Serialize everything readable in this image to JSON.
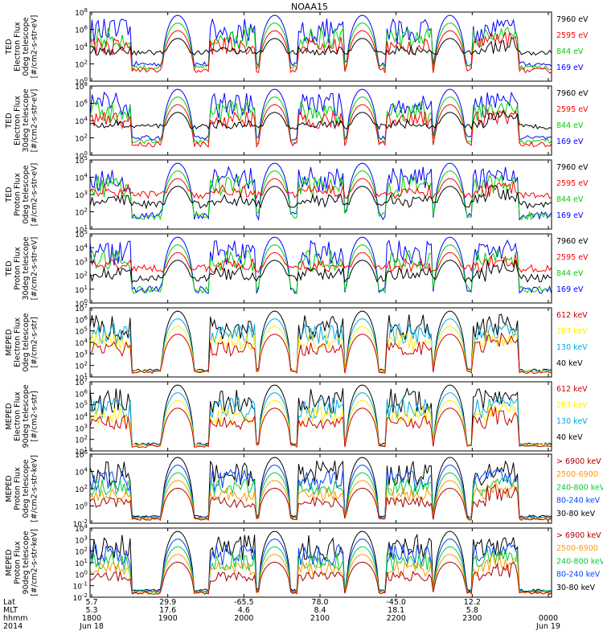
{
  "title": "NOAA15",
  "chart_data": {
    "type": "line",
    "title": "NOAA15",
    "x_axis": {
      "rows": [
        {
          "label": "Lat",
          "values": [
            "5.7",
            "29.9",
            "-65.5",
            "78.0",
            "-45.0",
            "12.2"
          ]
        },
        {
          "label": "MLT",
          "values": [
            "5.3",
            "17.6",
            "4.6",
            "8.4",
            "18.1",
            "5.8"
          ]
        },
        {
          "label": "hhmm",
          "values": [
            "1800",
            "1900",
            "2000",
            "2100",
            "2200",
            "2300",
            "0000"
          ]
        },
        {
          "label": "2014",
          "values": [
            "Jun 18",
            "Jun 19"
          ]
        }
      ],
      "tick_times": [
        "1800",
        "1900",
        "2000",
        "2100",
        "2200",
        "2300",
        "0000"
      ]
    },
    "panels": [
      {
        "ylabel": [
          "TED",
          "Electron Flux",
          "0deg telescope",
          "[#/cm2-s-str-eV]"
        ],
        "ylim": [
          "10^0",
          "10^8"
        ],
        "yticks": [
          {
            "base": "10",
            "exp": "0"
          },
          {
            "base": "10",
            "exp": "2"
          },
          {
            "base": "10",
            "exp": "4"
          },
          {
            "base": "10",
            "exp": "6"
          },
          {
            "base": "10",
            "exp": "8"
          }
        ],
        "series": [
          {
            "name": "7960 eV",
            "color": "#000000"
          },
          {
            "name": "2595 eV",
            "color": "#ff0000"
          },
          {
            "name": "844 eV",
            "color": "#00d000"
          },
          {
            "name": "169 eV",
            "color": "#0000ff"
          }
        ]
      },
      {
        "ylabel": [
          "TED",
          "Electron Flux",
          "30deg telescope",
          "[#/cm2-s-str-eV]"
        ],
        "ylim": [
          "10^0",
          "10^8"
        ],
        "yticks": [
          {
            "base": "10",
            "exp": "0"
          },
          {
            "base": "10",
            "exp": "2"
          },
          {
            "base": "10",
            "exp": "4"
          },
          {
            "base": "10",
            "exp": "6"
          },
          {
            "base": "10",
            "exp": "8"
          }
        ],
        "series": [
          {
            "name": "7960 eV",
            "color": "#000000"
          },
          {
            "name": "2595 eV",
            "color": "#ff0000"
          },
          {
            "name": "844 eV",
            "color": "#00d000"
          },
          {
            "name": "169 eV",
            "color": "#0000ff"
          }
        ]
      },
      {
        "ylabel": [
          "TED",
          "Proton Flux",
          "0deg telescope",
          "[#/cm2-s-str-eV]"
        ],
        "ylim": [
          "10^0",
          "10^5"
        ],
        "yticks": [
          {
            "base": "10",
            "exp": "1"
          },
          {
            "base": "10",
            "exp": "2"
          },
          {
            "base": "10",
            "exp": "3"
          },
          {
            "base": "10",
            "exp": "4"
          },
          {
            "base": "10",
            "exp": "5"
          }
        ],
        "series": [
          {
            "name": "7960 eV",
            "color": "#000000"
          },
          {
            "name": "2595 eV",
            "color": "#ff0000"
          },
          {
            "name": "844 eV",
            "color": "#00d000"
          },
          {
            "name": "169 eV",
            "color": "#0000ff"
          }
        ]
      },
      {
        "ylabel": [
          "TED",
          "Proton Flux",
          "30deg telescope",
          "[#/cm2-s-str-eV]"
        ],
        "ylim": [
          "10^0",
          "10^5"
        ],
        "yticks": [
          {
            "base": "10",
            "exp": "0"
          },
          {
            "base": "10",
            "exp": "1"
          },
          {
            "base": "10",
            "exp": "2"
          },
          {
            "base": "10",
            "exp": "3"
          },
          {
            "base": "10",
            "exp": "4"
          },
          {
            "base": "10",
            "exp": "5"
          }
        ],
        "series": [
          {
            "name": "7960 eV",
            "color": "#000000"
          },
          {
            "name": "2595 eV",
            "color": "#ff0000"
          },
          {
            "name": "844 eV",
            "color": "#00d000"
          },
          {
            "name": "169 eV",
            "color": "#0000ff"
          }
        ]
      },
      {
        "ylabel": [
          "MEPED",
          "Electron Flux",
          "0deg telescope",
          "[#/cm2-s-str]"
        ],
        "ylim": [
          "10^1",
          "10^7"
        ],
        "yticks": [
          {
            "base": "10",
            "exp": "1"
          },
          {
            "base": "10",
            "exp": "2"
          },
          {
            "base": "10",
            "exp": "3"
          },
          {
            "base": "10",
            "exp": "4"
          },
          {
            "base": "10",
            "exp": "5"
          },
          {
            "base": "10",
            "exp": "6"
          },
          {
            "base": "10",
            "exp": "7"
          }
        ],
        "series": [
          {
            "name": "612 keV",
            "color": "#cc0000"
          },
          {
            "name": "287 keV",
            "color": "#ffee00"
          },
          {
            "name": "130 keV",
            "color": "#00aadd"
          },
          {
            "name": "40 keV",
            "color": "#000000"
          }
        ]
      },
      {
        "ylabel": [
          "MEPED",
          "Electron Flux",
          "90deg telescope",
          "[#/cm2-s-str]"
        ],
        "ylim": [
          "10^1",
          "10^7"
        ],
        "yticks": [
          {
            "base": "10",
            "exp": "1"
          },
          {
            "base": "10",
            "exp": "2"
          },
          {
            "base": "10",
            "exp": "3"
          },
          {
            "base": "10",
            "exp": "4"
          },
          {
            "base": "10",
            "exp": "5"
          },
          {
            "base": "10",
            "exp": "6"
          },
          {
            "base": "10",
            "exp": "7"
          }
        ],
        "series": [
          {
            "name": "612 keV",
            "color": "#cc0000"
          },
          {
            "name": "287 keV",
            "color": "#ffee00"
          },
          {
            "name": "130 keV",
            "color": "#00aadd"
          },
          {
            "name": "40 keV",
            "color": "#000000"
          }
        ]
      },
      {
        "ylabel": [
          "MEPED",
          "Proton Flux",
          "0deg telescope",
          "[#/cm2-s-str-keV]"
        ],
        "ylim": [
          "10^-2",
          "10^6"
        ],
        "yticks": [
          {
            "base": "10",
            "exp": "-2"
          },
          {
            "base": "10",
            "exp": "0"
          },
          {
            "base": "10",
            "exp": "2"
          },
          {
            "base": "10",
            "exp": "4"
          },
          {
            "base": "10",
            "exp": "6"
          }
        ],
        "series": [
          {
            "name": "> 6900 keV",
            "color": "#aa0000"
          },
          {
            "name": "2500-6900",
            "color": "#ff9900"
          },
          {
            "name": "240-800 keV",
            "color": "#00cc33"
          },
          {
            "name": "80-240 keV",
            "color": "#0044ff"
          },
          {
            "name": "30-80 keV",
            "color": "#000000"
          }
        ]
      },
      {
        "ylabel": [
          "MEPED",
          "Proton Flux",
          "90deg telescope",
          "[#/cm2-s-str-keV]"
        ],
        "ylim": [
          "10^-2",
          "10^4"
        ],
        "yticks": [
          {
            "base": "10",
            "exp": "-2"
          },
          {
            "base": "10",
            "exp": "-1"
          },
          {
            "base": "10",
            "exp": "0"
          },
          {
            "base": "10",
            "exp": "1"
          },
          {
            "base": "10",
            "exp": "2"
          },
          {
            "base": "10",
            "exp": "3"
          },
          {
            "base": "10",
            "exp": "4"
          }
        ],
        "series": [
          {
            "name": "> 6900 keV",
            "color": "#aa0000"
          },
          {
            "name": "2500-6900",
            "color": "#ff9900"
          },
          {
            "name": "240-800 keV",
            "color": "#00cc33"
          },
          {
            "name": "80-240 keV",
            "color": "#0044ff"
          },
          {
            "name": "30-80 keV",
            "color": "#000000"
          }
        ]
      }
    ]
  }
}
